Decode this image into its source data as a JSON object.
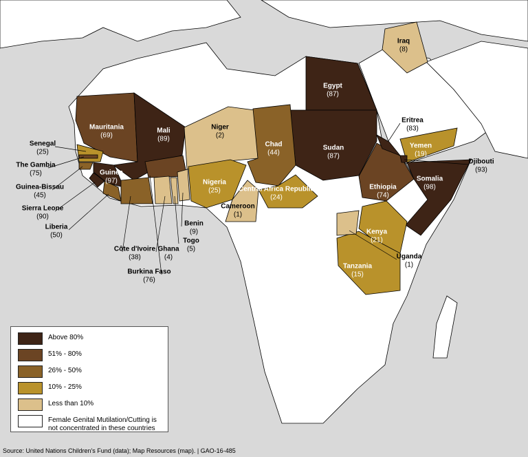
{
  "countries": [
    {
      "name": "Egypt",
      "value": 87,
      "value_label": "(87)",
      "color": "#3e2416"
    },
    {
      "name": "Sudan",
      "value": 87,
      "value_label": "(87)",
      "color": "#3e2416"
    },
    {
      "name": "Mauritania",
      "value": 69,
      "value_label": "(69)",
      "color": "#6b4423"
    },
    {
      "name": "Mali",
      "value": 89,
      "value_label": "(89)",
      "color": "#3e2416"
    },
    {
      "name": "Niger",
      "value": 2,
      "value_label": "(2)",
      "color": "#dcc08b"
    },
    {
      "name": "Chad",
      "value": 44,
      "value_label": "(44)",
      "color": "#8a6228"
    },
    {
      "name": "Nigeria",
      "value": 25,
      "value_label": "(25)",
      "color": "#b9922b"
    },
    {
      "name": "Central Africa Republic",
      "value": 24,
      "value_label": "(24)",
      "color": "#b9922b"
    },
    {
      "name": "Cameroon",
      "value": 1,
      "value_label": "(1)",
      "color": "#dcc08b"
    },
    {
      "name": "Ethiopia",
      "value": 74,
      "value_label": "(74)",
      "color": "#6b4423"
    },
    {
      "name": "Somalia",
      "value": 98,
      "value_label": "(98)",
      "color": "#3e2416"
    },
    {
      "name": "Kenya",
      "value": 21,
      "value_label": "(21)",
      "color": "#b9922b"
    },
    {
      "name": "Tanzania",
      "value": 15,
      "value_label": "(15)",
      "color": "#b9922b"
    },
    {
      "name": "Yemen",
      "value": 19,
      "value_label": "(19)",
      "color": "#b9922b"
    },
    {
      "name": "Iraq",
      "value": 8,
      "value_label": "(8)",
      "color": "#dcc08b"
    },
    {
      "name": "Guinea",
      "value": 97,
      "value_label": "(97)",
      "color": "#3e2416"
    },
    {
      "name": "Senegal",
      "value": 25,
      "value_label": "(25)",
      "color": "#b9922b"
    },
    {
      "name": "The Gambia",
      "value": 75,
      "value_label": "(75)",
      "color": "#6b4423"
    },
    {
      "name": "Guinea-Bissau",
      "value": 45,
      "value_label": "(45)",
      "color": "#8a6228"
    },
    {
      "name": "Sierra Leone",
      "value": 90,
      "value_label": "(90)",
      "color": "#3e2416"
    },
    {
      "name": "Liberia",
      "value": 50,
      "value_label": "(50)",
      "color": "#8a6228"
    },
    {
      "name": "Côte d'Ivoire",
      "value": 38,
      "value_label": "(38)",
      "color": "#8a6228"
    },
    {
      "name": "Burkina Faso",
      "value": 76,
      "value_label": "(76)",
      "color": "#6b4423"
    },
    {
      "name": "Ghana",
      "value": 4,
      "value_label": "(4)",
      "color": "#dcc08b"
    },
    {
      "name": "Togo",
      "value": 5,
      "value_label": "(5)",
      "color": "#dcc08b"
    },
    {
      "name": "Benin",
      "value": 9,
      "value_label": "(9)",
      "color": "#dcc08b"
    },
    {
      "name": "Uganda",
      "value": 1,
      "value_label": "(1)",
      "color": "#dcc08b"
    },
    {
      "name": "Eritrea",
      "value": 83,
      "value_label": "(83)",
      "color": "#3e2416"
    },
    {
      "name": "Djibouti",
      "value": 93,
      "value_label": "(93)",
      "color": "#3e2416"
    }
  ],
  "legend": [
    {
      "label": "Above 80%",
      "color": "#3e2416"
    },
    {
      "label": "51% - 80%",
      "color": "#6b4423"
    },
    {
      "label": "26% - 50%",
      "color": "#8a6228"
    },
    {
      "label": "10% - 25%",
      "color": "#b9922b"
    },
    {
      "label": "Less than 10%",
      "color": "#dcc08b"
    },
    {
      "label": "Female Genital Mutilation/Cutting is not concentrated in these countries",
      "color": "#ffffff"
    }
  ],
  "source": "Source: United Nations Children's Fund (data); Map Resources (map).  |  GAO-16-485"
}
